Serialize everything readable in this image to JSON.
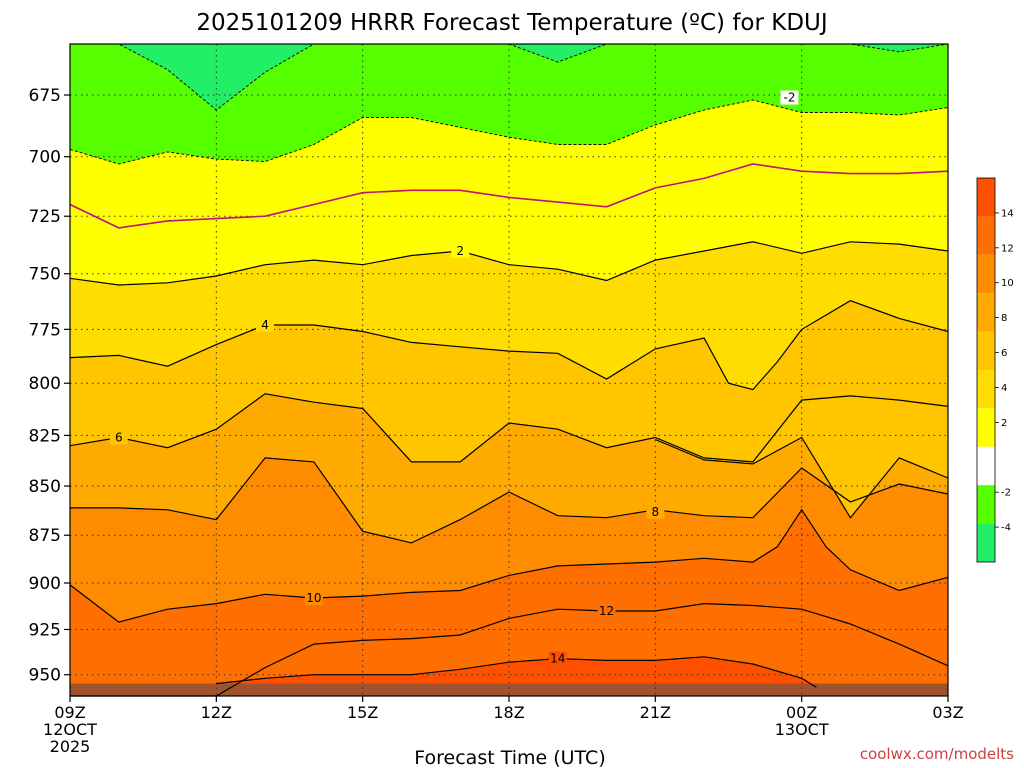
{
  "chart_data": {
    "type": "contour",
    "title": "2025101209 HRRR Forecast Temperature (ºC) for KDUJ",
    "xlabel": "Forecast Time (UTC)",
    "credit": "coolwx.com/modelts",
    "x_ticks": [
      {
        "hour": 0,
        "label": "09Z",
        "sub1": "12OCT",
        "sub2": "2025"
      },
      {
        "hour": 3,
        "label": "12Z",
        "sub1": "",
        "sub2": ""
      },
      {
        "hour": 6,
        "label": "15Z",
        "sub1": "",
        "sub2": ""
      },
      {
        "hour": 9,
        "label": "18Z",
        "sub1": "",
        "sub2": ""
      },
      {
        "hour": 12,
        "label": "21Z",
        "sub1": "",
        "sub2": ""
      },
      {
        "hour": 15,
        "label": "00Z",
        "sub1": "13OCT",
        "sub2": ""
      },
      {
        "hour": 18,
        "label": "03Z",
        "sub1": "",
        "sub2": ""
      }
    ],
    "xlim": [
      0,
      18
    ],
    "y_ticks": [
      675,
      700,
      725,
      750,
      775,
      800,
      825,
      850,
      875,
      900,
      925,
      950
    ],
    "ylim_hPa": [
      655,
      962
    ],
    "y_scale": "log-pressure",
    "colorbar": {
      "ticks": [
        -4,
        -2,
        2,
        4,
        6,
        8,
        10,
        12,
        14
      ],
      "bins": [
        {
          "from": -6,
          "to": -4,
          "color": "#22ee66"
        },
        {
          "from": -4,
          "to": -2,
          "color": "#55ff00"
        },
        {
          "from": -2,
          "to": 2,
          "color": "#ffffff"
        },
        {
          "from": 2,
          "to": 4,
          "color": "#ffff00"
        },
        {
          "from": 4,
          "to": 6,
          "color": "#ffdd00"
        },
        {
          "from": 6,
          "to": 8,
          "color": "#ffc600"
        },
        {
          "from": 8,
          "to": 10,
          "color": "#ffaa00"
        },
        {
          "from": 10,
          "to": 12,
          "color": "#ff8c00"
        },
        {
          "from": 12,
          "to": 14,
          "color": "#ff6e00"
        },
        {
          "from": 14,
          "to": 16,
          "color": "#ff5000"
        }
      ]
    },
    "ground_color": "#a0522d",
    "ground_hPa": 955,
    "isotherms": [
      {
        "temp": -4,
        "style": "dash",
        "points": [
          [
            0,
            655
          ],
          [
            1,
            655
          ],
          [
            2,
            665
          ],
          [
            3,
            681
          ],
          [
            4,
            666
          ],
          [
            5,
            655
          ],
          [
            9,
            655
          ],
          [
            10,
            662
          ],
          [
            11,
            655
          ],
          [
            16,
            655
          ],
          [
            17,
            658
          ],
          [
            18,
            655
          ]
        ]
      },
      {
        "temp": -2,
        "style": "dash",
        "label": "-2",
        "label_at": [
          14.75,
          676
        ],
        "points": [
          [
            0,
            697
          ],
          [
            1,
            703
          ],
          [
            2,
            698
          ],
          [
            3,
            701
          ],
          [
            4,
            702
          ],
          [
            5,
            695
          ],
          [
            6,
            684
          ],
          [
            7,
            684
          ],
          [
            8,
            688
          ],
          [
            9,
            692
          ],
          [
            10,
            695
          ],
          [
            11,
            695
          ],
          [
            12,
            687
          ],
          [
            13,
            681
          ],
          [
            14,
            677
          ],
          [
            15,
            682
          ],
          [
            16,
            682
          ],
          [
            17,
            683
          ],
          [
            18,
            680
          ]
        ]
      },
      {
        "temp": 0,
        "style": "zero",
        "points": [
          [
            0,
            720
          ],
          [
            1,
            730
          ],
          [
            2,
            727
          ],
          [
            3,
            726
          ],
          [
            4,
            725
          ],
          [
            5,
            720
          ],
          [
            6,
            715
          ],
          [
            7,
            714
          ],
          [
            8,
            714
          ],
          [
            9,
            717
          ],
          [
            10,
            719
          ],
          [
            11,
            721
          ],
          [
            12,
            713
          ],
          [
            13,
            709
          ],
          [
            14,
            703
          ],
          [
            15,
            706
          ],
          [
            16,
            707
          ],
          [
            17,
            707
          ],
          [
            18,
            706
          ]
        ]
      },
      {
        "temp": 2,
        "style": "iso",
        "label": "2",
        "label_at": [
          8,
          740
        ],
        "points": [
          [
            0,
            752
          ],
          [
            1,
            755
          ],
          [
            2,
            754
          ],
          [
            3,
            751
          ],
          [
            4,
            746
          ],
          [
            5,
            744
          ],
          [
            6,
            746
          ],
          [
            7,
            742
          ],
          [
            8,
            740
          ],
          [
            9,
            746
          ],
          [
            10,
            748
          ],
          [
            11,
            753
          ],
          [
            12,
            744
          ],
          [
            13,
            740
          ],
          [
            14,
            736
          ],
          [
            15,
            741
          ],
          [
            16,
            736
          ],
          [
            17,
            737
          ],
          [
            18,
            740
          ]
        ]
      },
      {
        "temp": 4,
        "style": "iso",
        "label": "4",
        "label_at": [
          4,
          773
        ],
        "points": [
          [
            0,
            788
          ],
          [
            1,
            787
          ],
          [
            2,
            792
          ],
          [
            3,
            782
          ],
          [
            4,
            773
          ],
          [
            5,
            773
          ],
          [
            6,
            776
          ],
          [
            7,
            781
          ],
          [
            8,
            783
          ],
          [
            9,
            785
          ],
          [
            10,
            786
          ],
          [
            11,
            798
          ],
          [
            12,
            784
          ],
          [
            13,
            779
          ],
          [
            13.5,
            800
          ],
          [
            14,
            803
          ],
          [
            14.5,
            790
          ],
          [
            15,
            775
          ],
          [
            16,
            762
          ],
          [
            17,
            770
          ],
          [
            18,
            776
          ]
        ]
      },
      {
        "temp": 6,
        "style": "iso",
        "label": "6",
        "label_at": [
          1,
          826
        ],
        "points": [
          [
            0,
            830
          ],
          [
            1,
            826
          ],
          [
            2,
            831
          ],
          [
            3,
            822
          ],
          [
            4,
            805
          ],
          [
            5,
            809
          ],
          [
            6,
            812
          ],
          [
            7,
            838
          ],
          [
            8,
            838
          ],
          [
            9,
            819
          ],
          [
            10,
            822
          ],
          [
            11,
            831
          ],
          [
            12,
            826
          ],
          [
            13,
            836
          ],
          [
            14,
            838
          ],
          [
            15,
            808
          ],
          [
            16,
            806
          ],
          [
            17,
            808
          ],
          [
            18,
            811
          ]
        ]
      },
      {
        "temp": 6,
        "style": "iso",
        "label": "",
        "points": [
          [
            18,
            846
          ],
          [
            17,
            836
          ],
          [
            16,
            866
          ],
          [
            15,
            826
          ],
          [
            14,
            839
          ],
          [
            13,
            837
          ],
          [
            12,
            827
          ]
        ]
      },
      {
        "temp": 8,
        "style": "iso",
        "label": "8",
        "label_at": [
          12,
          863
        ],
        "points": [
          [
            0,
            861
          ],
          [
            1,
            861
          ],
          [
            2,
            862
          ],
          [
            3,
            867
          ],
          [
            4,
            836
          ],
          [
            5,
            838
          ],
          [
            6,
            873
          ],
          [
            7,
            879
          ],
          [
            8,
            867
          ],
          [
            9,
            853
          ],
          [
            10,
            865
          ],
          [
            11,
            866
          ],
          [
            12,
            862
          ],
          [
            13,
            865
          ],
          [
            14,
            866
          ],
          [
            15,
            841
          ],
          [
            16,
            858
          ],
          [
            17,
            849
          ],
          [
            18,
            854
          ]
        ]
      },
      {
        "temp": 10,
        "style": "iso",
        "label": "10",
        "label_at": [
          5,
          908
        ],
        "points": [
          [
            0,
            901
          ],
          [
            1,
            921
          ],
          [
            2,
            914
          ],
          [
            3,
            911
          ],
          [
            4,
            906
          ],
          [
            5,
            908
          ],
          [
            6,
            907
          ],
          [
            7,
            905
          ],
          [
            8,
            904
          ],
          [
            9,
            896
          ],
          [
            10,
            891
          ],
          [
            11,
            890
          ],
          [
            12,
            889
          ],
          [
            13,
            887
          ],
          [
            14,
            889
          ],
          [
            14.5,
            881
          ],
          [
            15,
            862
          ],
          [
            15.5,
            881
          ],
          [
            16,
            893
          ],
          [
            17,
            904
          ],
          [
            18,
            897
          ]
        ]
      },
      {
        "temp": 12,
        "style": "iso",
        "label": "12",
        "label_at": [
          11,
          915
        ],
        "points": [
          [
            0,
            962
          ],
          [
            1,
            962
          ],
          [
            2,
            962
          ],
          [
            3,
            962
          ],
          [
            4,
            946
          ],
          [
            5,
            933
          ],
          [
            6,
            931
          ],
          [
            7,
            930
          ],
          [
            8,
            928
          ],
          [
            9,
            919
          ],
          [
            10,
            914
          ],
          [
            11,
            915
          ],
          [
            12,
            915
          ],
          [
            13,
            911
          ],
          [
            14,
            912
          ],
          [
            15,
            914
          ],
          [
            16,
            922
          ],
          [
            17,
            933
          ],
          [
            18,
            945
          ]
        ]
      },
      {
        "temp": 14,
        "style": "iso",
        "label": "14",
        "label_at": [
          10,
          941
        ],
        "points": [
          [
            3,
            955
          ],
          [
            4,
            952
          ],
          [
            5,
            950
          ],
          [
            6,
            950
          ],
          [
            7,
            950
          ],
          [
            8,
            947
          ],
          [
            9,
            943
          ],
          [
            10,
            941
          ],
          [
            11,
            942
          ],
          [
            12,
            942
          ],
          [
            13,
            940
          ],
          [
            14,
            944
          ],
          [
            15,
            952
          ],
          [
            15.3,
            957
          ]
        ]
      }
    ]
  }
}
